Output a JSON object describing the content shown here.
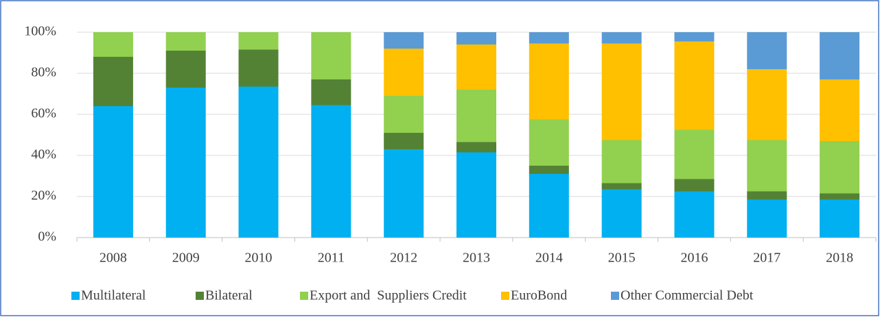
{
  "chart_data": {
    "type": "stacked_bar",
    "categories": [
      "2008",
      "2009",
      "2010",
      "2011",
      "2012",
      "2013",
      "2014",
      "2015",
      "2016",
      "2017",
      "2018"
    ],
    "series": [
      {
        "name": "Multilateral",
        "color": "#00b0f0",
        "values": [
          64,
          73,
          73.5,
          64.5,
          43,
          41.5,
          31,
          23.5,
          22.5,
          18.5,
          18.5
        ]
      },
      {
        "name": "Bilateral",
        "color": "#548235",
        "values": [
          24,
          18,
          18,
          12.5,
          8,
          5,
          4,
          3,
          6,
          4,
          3
        ]
      },
      {
        "name": "Export and  Suppliers Credit",
        "color": "#92d050",
        "values": [
          12,
          9,
          8.5,
          23,
          18,
          25.5,
          22.5,
          21,
          24,
          25,
          25.5
        ]
      },
      {
        "name": "EuroBond",
        "color": "#ffc000",
        "values": [
          0,
          0,
          0,
          0,
          23,
          22,
          37,
          47,
          43,
          34.5,
          30
        ]
      },
      {
        "name": "Other Commercial Debt",
        "color": "#5b9bd5",
        "values": [
          0,
          0,
          0,
          0,
          8,
          6,
          5.5,
          5.5,
          4.5,
          18,
          23
        ]
      }
    ],
    "ylim": [
      0,
      100
    ],
    "yticks": [
      {
        "value": 0,
        "label": "0%"
      },
      {
        "value": 20,
        "label": "20%"
      },
      {
        "value": 40,
        "label": "40%"
      },
      {
        "value": 60,
        "label": "60%"
      },
      {
        "value": 80,
        "label": "80%"
      },
      {
        "value": 100,
        "label": "100%"
      }
    ],
    "grid": true
  }
}
